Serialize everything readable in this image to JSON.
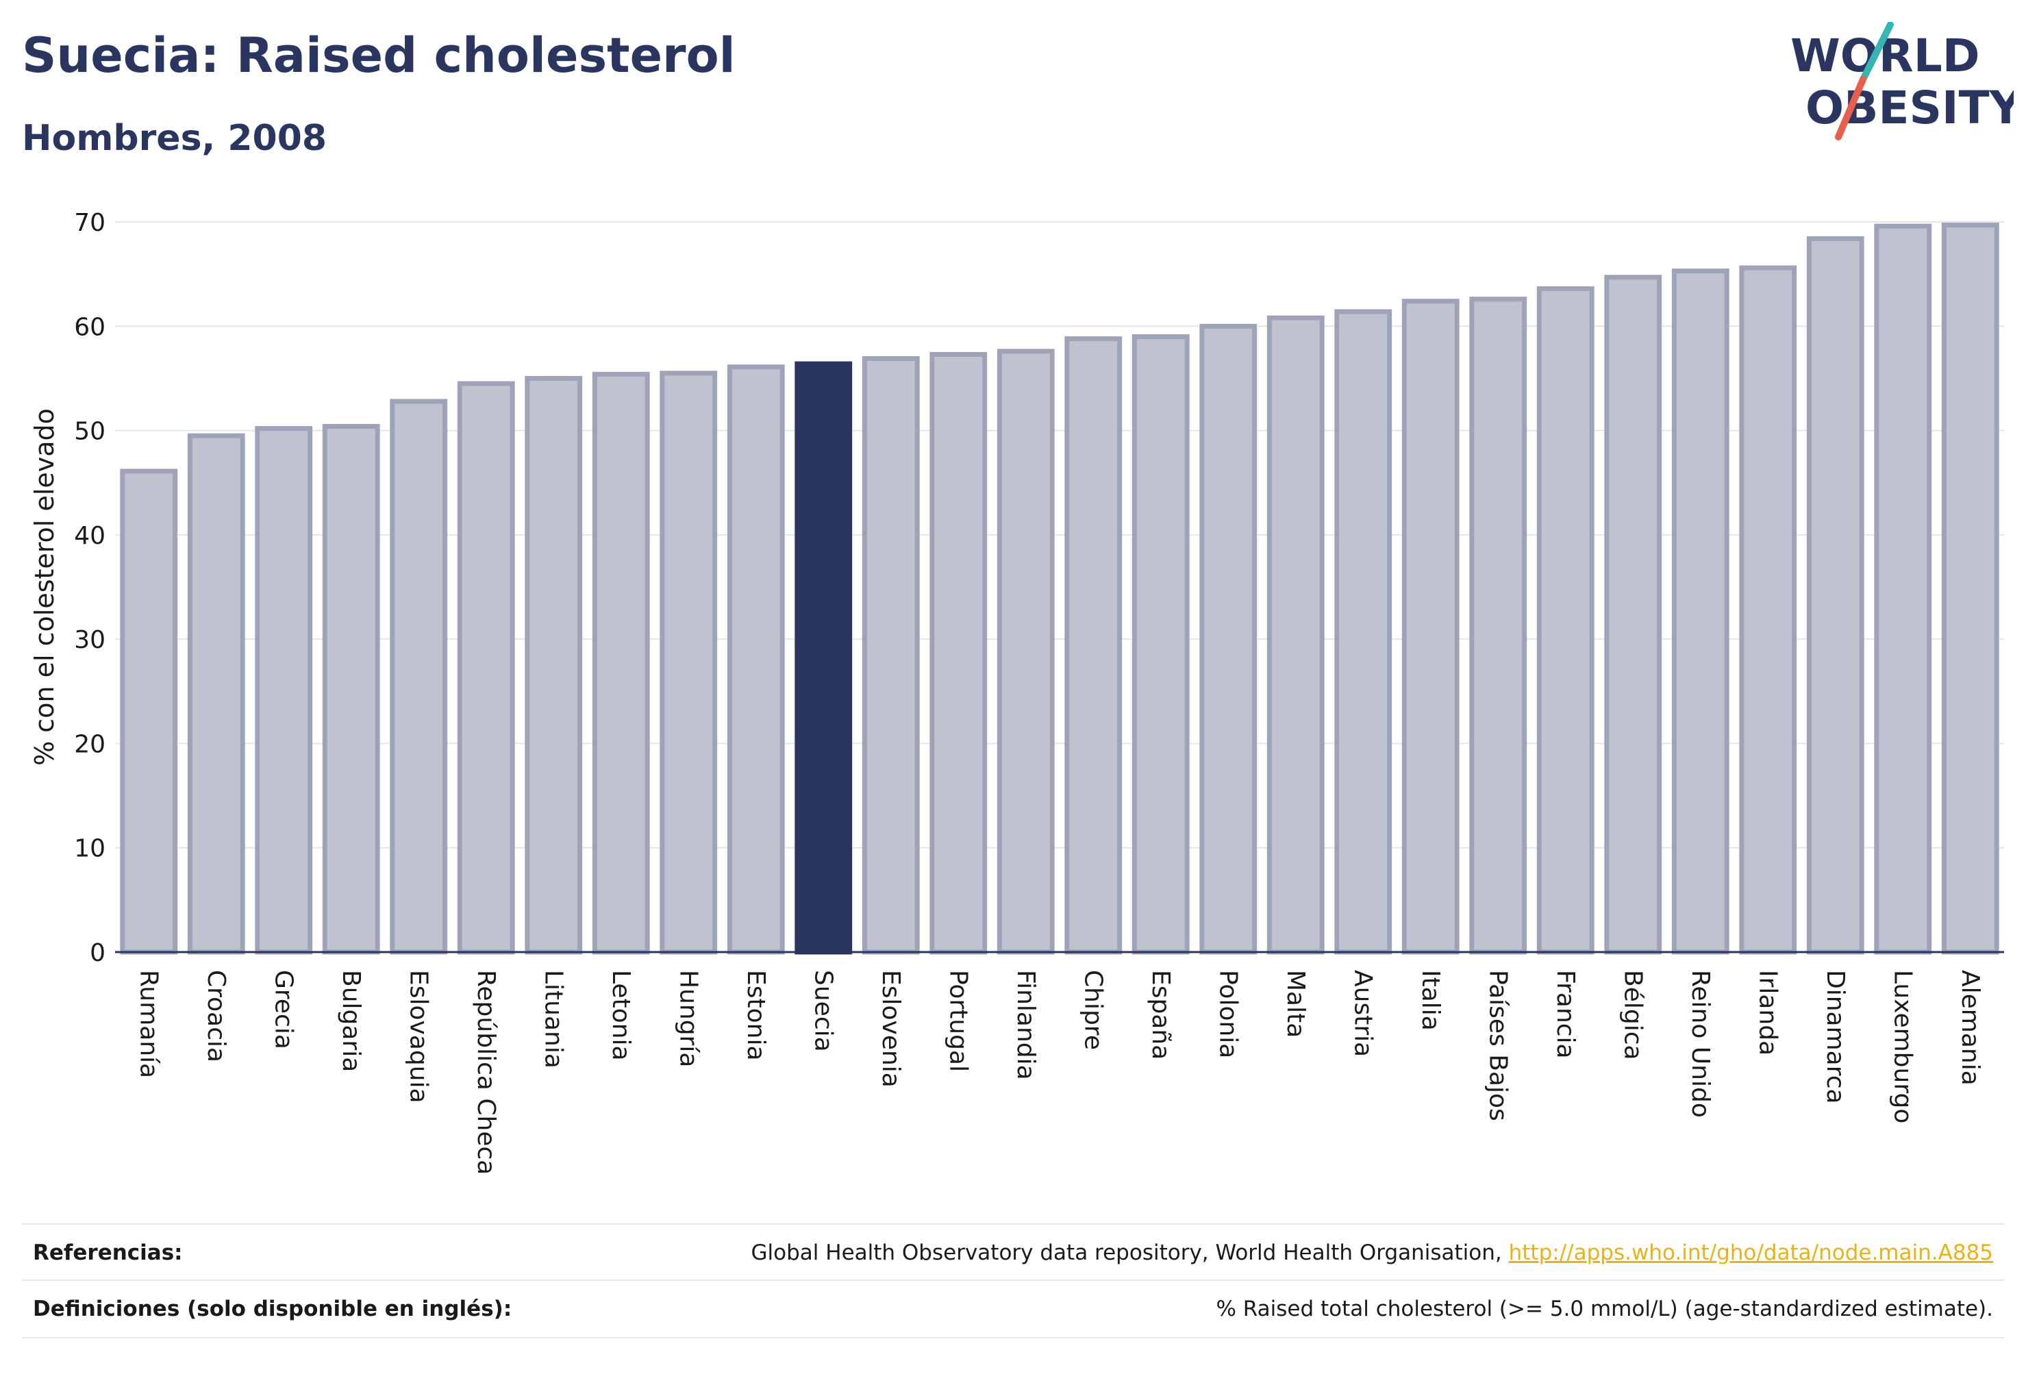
{
  "header": {
    "title": "Suecia: Raised cholesterol",
    "subtitle": "Hombres, 2008"
  },
  "logo": {
    "line1": "WORLD",
    "line2": "OBESITY",
    "colors": {
      "text": "#2a3560",
      "slash_teal": "#35b6b4",
      "slash_red": "#e8604c"
    }
  },
  "chart_data": {
    "type": "bar",
    "ylabel": "% con el colesterol elevado",
    "ylim": [
      0,
      70
    ],
    "yticks": [
      0,
      10,
      20,
      30,
      40,
      50,
      60,
      70
    ],
    "grid": true,
    "highlight": "Suecia",
    "colors": {
      "bar": "#bfc2cf",
      "bar_border": "#9ea3b8",
      "highlight": "#2a3560"
    },
    "categories": [
      "Rumanía",
      "Croacia",
      "Grecia",
      "Bulgaria",
      "Eslovaquia",
      "República Checa",
      "Lituania",
      "Letonia",
      "Hungría",
      "Estonia",
      "Suecia",
      "Eslovenia",
      "Portugal",
      "Finlandia",
      "Chipre",
      "España",
      "Polonia",
      "Malta",
      "Austria",
      "Italia",
      "Países Bajos",
      "Francia",
      "Bélgica",
      "Reino Unido",
      "Irlanda",
      "Dinamarca",
      "Luxemburgo",
      "Alemania"
    ],
    "values": [
      46.1,
      49.5,
      50.2,
      50.4,
      52.8,
      54.5,
      55.0,
      55.4,
      55.5,
      56.1,
      56.4,
      56.9,
      57.3,
      57.6,
      58.8,
      59.0,
      60.0,
      60.8,
      61.4,
      62.4,
      62.6,
      63.6,
      64.7,
      65.3,
      65.6,
      68.4,
      69.6,
      69.7
    ]
  },
  "footer": {
    "references_label": "Referencias:",
    "references_text": "Global Health Observatory data repository, World Health Organisation, ",
    "references_link": "http://apps.who.int/gho/data/node.main.A885",
    "definitions_label": "Definiciones (solo disponible en inglés):",
    "definitions_text": "% Raised total cholesterol (>= 5.0 mmol/L) (age-standardized estimate)."
  }
}
